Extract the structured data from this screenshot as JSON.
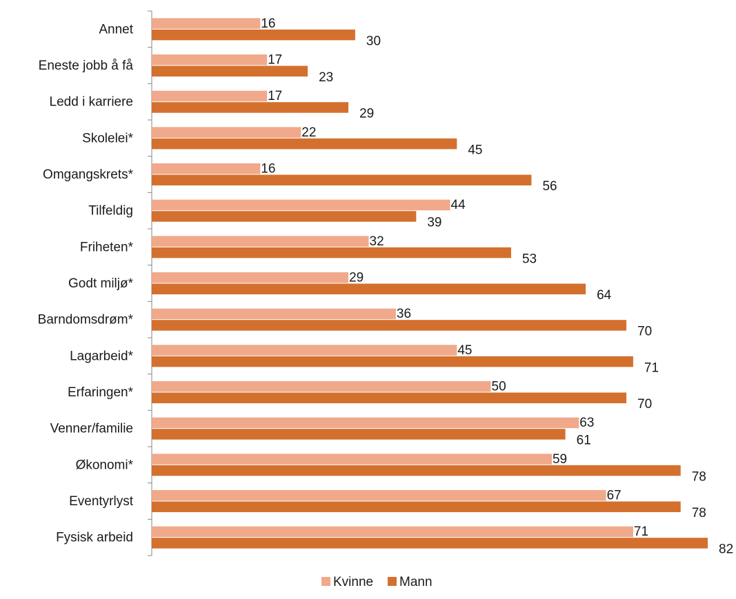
{
  "chart_data": {
    "type": "bar",
    "orientation": "horizontal",
    "categories": [
      "Annet",
      "Eneste jobb å få",
      "Ledd i karriere",
      "Skolelei*",
      "Omgangskrets*",
      "Tilfeldig",
      "Friheten*",
      "Godt miljø*",
      "Barndomsdrøm*",
      "Lagarbeid*",
      "Erfaringen*",
      "Venner/familie",
      "Økonomi*",
      "Eventyrlyst",
      "Fysisk arbeid"
    ],
    "series": [
      {
        "name": "Kvinne",
        "color": "#f0a98a",
        "values": [
          16,
          17,
          17,
          22,
          16,
          44,
          32,
          29,
          36,
          45,
          50,
          63,
          59,
          67,
          71
        ]
      },
      {
        "name": "Mann",
        "color": "#d4702e",
        "values": [
          30,
          23,
          29,
          45,
          56,
          39,
          53,
          64,
          70,
          71,
          70,
          61,
          78,
          78,
          82
        ]
      }
    ],
    "xlim": [
      0,
      82
    ],
    "grid": false,
    "legend_position": "bottom"
  }
}
